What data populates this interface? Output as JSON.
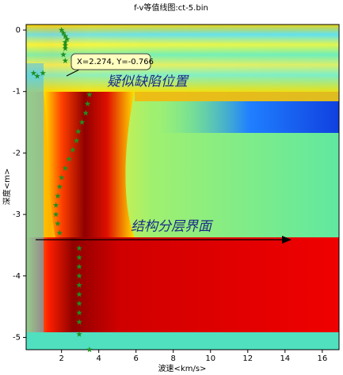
{
  "chart_data": {
    "type": "scatter",
    "title": "f-v等值线图:ct-5.bin",
    "x_label": "波速<km/s>",
    "y_label": "深度<m>",
    "xlim": [
      0.1,
      16.9
    ],
    "ylim": [
      -5.2,
      0.09
    ],
    "xticks": [
      2,
      4,
      6,
      8,
      10,
      12,
      14,
      16
    ],
    "yticks": [
      0,
      -1,
      -2,
      -3,
      -4,
      -5
    ],
    "marker_color": "#1f8f1f",
    "x": [
      2.0,
      2.1,
      2.2,
      2.3,
      2.2,
      2.2,
      2.2,
      2.1,
      2.2,
      0.5,
      0.7,
      1.0,
      3.5,
      3.4,
      3.3,
      3.1,
      2.9,
      2.8,
      2.6,
      2.4,
      2.2,
      2.0,
      1.9,
      1.8,
      1.7,
      1.7,
      1.8,
      1.9,
      2.95,
      2.95,
      2.95,
      2.95,
      2.95,
      2.95,
      2.95,
      2.95,
      2.95,
      2.95,
      3.5
    ],
    "values": [
      0.0,
      -0.05,
      -0.1,
      -0.15,
      -0.2,
      -0.25,
      -0.3,
      -0.4,
      -0.5,
      -0.7,
      -0.75,
      -0.7,
      -1.05,
      -1.2,
      -1.35,
      -1.5,
      -1.65,
      -1.8,
      -1.95,
      -2.1,
      -2.25,
      -2.4,
      -2.55,
      -2.7,
      -2.85,
      -3.0,
      -3.15,
      -3.3,
      -3.55,
      -3.7,
      -3.85,
      -4.0,
      -4.15,
      -4.3,
      -4.45,
      -4.6,
      -4.75,
      -4.95,
      -5.2
    ],
    "annotations": [
      "X=2.274, Y=-0.766",
      "疑似缺陷位置",
      "结构分层界面"
    ]
  }
}
